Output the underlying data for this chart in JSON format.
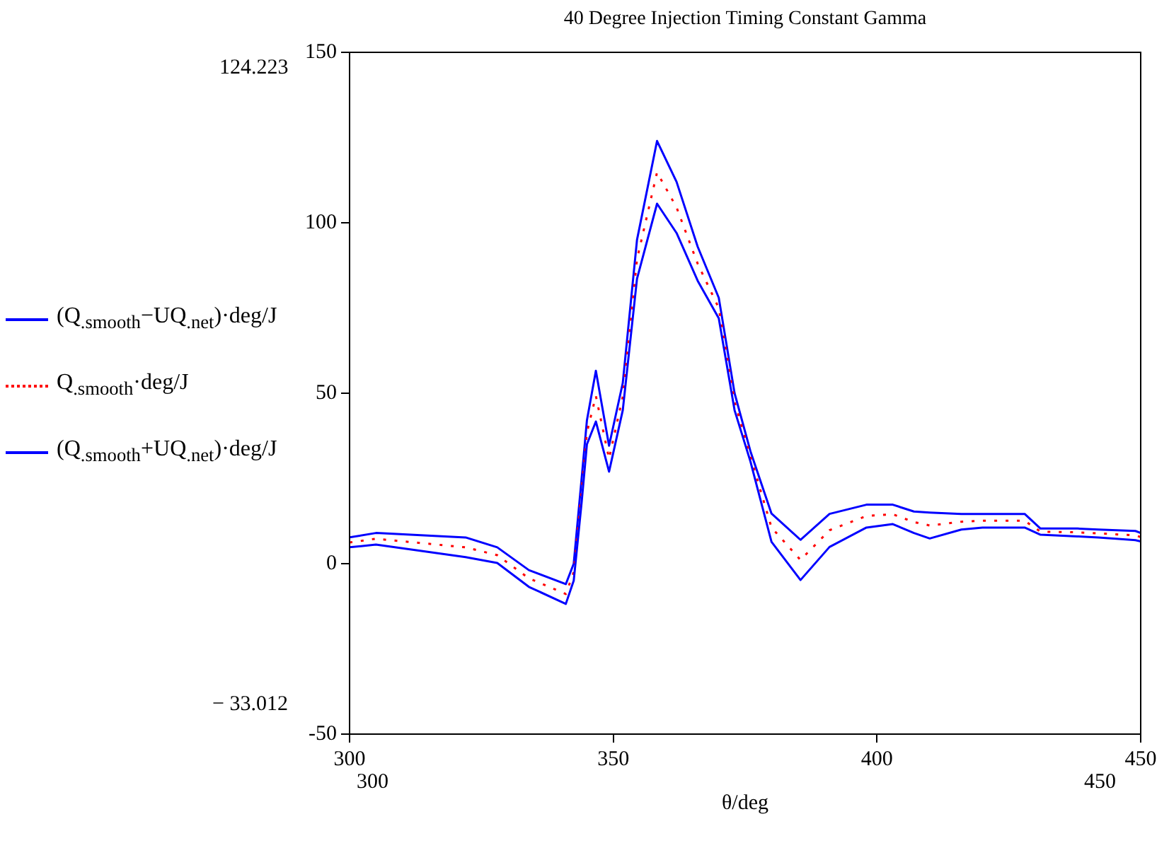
{
  "chart_data": {
    "type": "line",
    "title": "40 Degree Injection Timing Constant Gamma",
    "xlabel": "θ/deg",
    "x": [
      300,
      305,
      322,
      328,
      334,
      341,
      342.5,
      344,
      345,
      346.7,
      349.2,
      351.8,
      354.5,
      358.3,
      362,
      366,
      370,
      373,
      376,
      380,
      385.5,
      391,
      398,
      403,
      407,
      410,
      416,
      420,
      428,
      431,
      438,
      442,
      449,
      450
    ],
    "series": [
      {
        "name": "(Q$_{.smooth}$−UQ$_{.net}$)·deg/J",
        "color": "#0000ff",
        "line_style": "solid",
        "values": [
          4.8,
          5.6,
          1.9,
          0.2,
          -6.8,
          -11.8,
          -5,
          18,
          35,
          41.7,
          27,
          45,
          83.6,
          105.6,
          97,
          83,
          72,
          45,
          30,
          6.4,
          -4.8,
          4.9,
          10.6,
          11.6,
          9,
          7.4,
          10,
          10.6,
          10.6,
          8.5,
          8,
          7.7,
          6.9,
          6.5
        ]
      },
      {
        "name": "Q$_{.smooth}$·deg/J",
        "color": "#ff0000",
        "line_style": "dotted",
        "values": [
          6.2,
          7.3,
          4.8,
          2.5,
          -4.3,
          -8.9,
          -2.5,
          21.5,
          38.5,
          49.2,
          30.8,
          49,
          89.3,
          114.8,
          104.5,
          88,
          75,
          47.5,
          31.5,
          10.6,
          1.1,
          9.8,
          14,
          14.5,
          12.2,
          11.2,
          12.3,
          12.6,
          12.6,
          9.4,
          9.2,
          8.9,
          8.3,
          7.8
        ]
      },
      {
        "name": "(Q$_{.smooth}$+UQ$_{.net}$)·deg/J",
        "color": "#0000ff",
        "line_style": "solid",
        "values": [
          7.7,
          9,
          7.7,
          4.8,
          -1.9,
          -6,
          0,
          25,
          42,
          56.6,
          34.6,
          53,
          95,
          124,
          112,
          93,
          78,
          50,
          33,
          14.7,
          7,
          14.6,
          17.3,
          17.3,
          15.3,
          15,
          14.6,
          14.6,
          14.6,
          10.3,
          10.3,
          10,
          9.6,
          9
        ]
      }
    ],
    "xlim": [
      300,
      450
    ],
    "xticks": [
      300,
      350,
      400,
      450
    ],
    "ylim": [
      -50,
      150
    ],
    "yticks": [
      -50,
      0,
      50,
      100,
      150
    ],
    "annotations": [
      "124.223",
      "− 33.012",
      "300",
      "450"
    ],
    "grid": false,
    "legend": "left",
    "marker": "none"
  }
}
